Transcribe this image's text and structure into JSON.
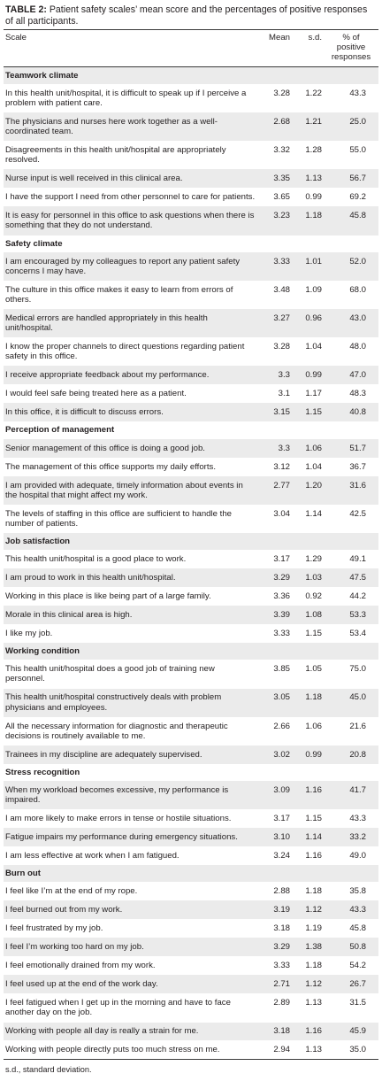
{
  "caption": {
    "label": "TABLE 2:",
    "text": " Patient safety scales’ mean score and the percentages of positive responses of all participants."
  },
  "columns": {
    "scale": "Scale",
    "mean": "Mean",
    "sd": "s.d.",
    "pct_line1": "% of",
    "pct_line2": "positive",
    "pct_line3": "responses"
  },
  "sections": [
    {
      "title": "Teamwork climate",
      "rows": [
        {
          "item": "In this health unit/hospital, it is difficult to speak up if I perceive a problem with patient care.",
          "mean": "3.28",
          "sd": "1.22",
          "pct": "43.3"
        },
        {
          "item": "The physicians and nurses here work together as a well-coordinated team.",
          "mean": "2.68",
          "sd": "1.21",
          "pct": "25.0"
        },
        {
          "item": "Disagreements in this health unit/hospital are appropriately resolved.",
          "mean": "3.32",
          "sd": "1.28",
          "pct": "55.0"
        },
        {
          "item": "Nurse input is well received in this clinical area.",
          "mean": "3.35",
          "sd": "1.13",
          "pct": "56.7"
        },
        {
          "item": "I have the support I need from other personnel to care for patients.",
          "mean": "3.65",
          "sd": "0.99",
          "pct": "69.2"
        },
        {
          "item": "It is easy for personnel in this office to ask questions when there is something that they do not understand.",
          "mean": "3.23",
          "sd": "1.18",
          "pct": "45.8"
        }
      ]
    },
    {
      "title": "Safety climate",
      "rows": [
        {
          "item": "I am encouraged by my colleagues to report any patient safety concerns I may have.",
          "mean": "3.33",
          "sd": "1.01",
          "pct": "52.0"
        },
        {
          "item": "The culture in this office makes it easy to learn from errors of others.",
          "mean": "3.48",
          "sd": "1.09",
          "pct": "68.0"
        },
        {
          "item": "Medical errors are handled appropriately in this health unit/hospital.",
          "mean": "3.27",
          "sd": "0.96",
          "pct": "43.0"
        },
        {
          "item": "I know the proper channels to direct questions regarding patient safety in this office.",
          "mean": "3.28",
          "sd": "1.04",
          "pct": "48.0"
        },
        {
          "item": "I receive appropriate feedback about my performance.",
          "mean": "3.3",
          "sd": "0.99",
          "pct": "47.0"
        },
        {
          "item": "I would feel safe being treated here as a patient.",
          "mean": "3.1",
          "sd": "1.17",
          "pct": "48.3"
        },
        {
          "item": "In this office, it is difficult to discuss errors.",
          "mean": "3.15",
          "sd": "1.15",
          "pct": "40.8"
        }
      ]
    },
    {
      "title": "Perception of management",
      "rows": [
        {
          "item": "Senior management of this office is doing a good job.",
          "mean": "3.3",
          "sd": "1.06",
          "pct": "51.7"
        },
        {
          "item": "The management of this office supports my daily efforts.",
          "mean": "3.12",
          "sd": "1.04",
          "pct": "36.7"
        },
        {
          "item": "I am provided with adequate, timely information about events in the hospital that might affect my work.",
          "mean": "2.77",
          "sd": "1.20",
          "pct": "31.6"
        },
        {
          "item": "The levels of staffing in this office are sufficient to handle the number of patients.",
          "mean": "3.04",
          "sd": "1.14",
          "pct": "42.5"
        }
      ]
    },
    {
      "title": "Job satisfaction",
      "rows": [
        {
          "item": "This health unit/hospital is a good place to work.",
          "mean": "3.17",
          "sd": "1.29",
          "pct": "49.1"
        },
        {
          "item": "I am proud to work in this health unit/hospital.",
          "mean": "3.29",
          "sd": "1.03",
          "pct": "47.5"
        },
        {
          "item": "Working in this place is like being part of a large family.",
          "mean": "3.36",
          "sd": "0.92",
          "pct": "44.2"
        },
        {
          "item": "Morale in this clinical area is high.",
          "mean": "3.39",
          "sd": "1.08",
          "pct": "53.3"
        },
        {
          "item": "I like my job.",
          "mean": "3.33",
          "sd": "1.15",
          "pct": "53.4"
        }
      ]
    },
    {
      "title": "Working condition",
      "rows": [
        {
          "item": "This health unit/hospital does a good job of training new personnel.",
          "mean": "3.85",
          "sd": "1.05",
          "pct": "75.0"
        },
        {
          "item": "This health unit/hospital constructively deals with problem physicians and employees.",
          "mean": "3.05",
          "sd": "1.18",
          "pct": "45.0"
        },
        {
          "item": "All the necessary information for diagnostic and therapeutic decisions is routinely available to me.",
          "mean": "2.66",
          "sd": "1.06",
          "pct": "21.6"
        },
        {
          "item": "Trainees in my discipline are adequately supervised.",
          "mean": "3.02",
          "sd": "0.99",
          "pct": "20.8"
        }
      ]
    },
    {
      "title": "Stress recognition",
      "rows": [
        {
          "item": "When my workload becomes excessive, my performance is impaired.",
          "mean": "3.09",
          "sd": "1.16",
          "pct": "41.7"
        },
        {
          "item": "I am more likely to make errors in tense or hostile situations.",
          "mean": "3.17",
          "sd": "1.15",
          "pct": "43.3"
        },
        {
          "item": "Fatigue impairs my performance during emergency situations.",
          "mean": "3.10",
          "sd": "1.14",
          "pct": "33.2"
        },
        {
          "item": "I am less effective at work when I am fatigued.",
          "mean": "3.24",
          "sd": "1.16",
          "pct": "49.0"
        }
      ]
    },
    {
      "title": "Burn out",
      "rows": [
        {
          "item": "I feel like I’m at the end of my rope.",
          "mean": "2.88",
          "sd": "1.18",
          "pct": "35.8"
        },
        {
          "item": "I feel burned out from my work.",
          "mean": "3.19",
          "sd": "1.12",
          "pct": "43.3"
        },
        {
          "item": "I feel frustrated by my job.",
          "mean": "3.18",
          "sd": "1.19",
          "pct": "45.8"
        },
        {
          "item": "I feel I’m working too hard on my job.",
          "mean": "3.29",
          "sd": "1.38",
          "pct": "50.8"
        },
        {
          "item": "I feel emotionally drained from my work.",
          "mean": "3.33",
          "sd": "1.18",
          "pct": "54.2"
        },
        {
          "item": "I feel used up at the end of the work day.",
          "mean": "2.71",
          "sd": "1.12",
          "pct": "26.7"
        },
        {
          "item": "I feel fatigued when I get up in the morning and have to face another day on the job.",
          "mean": "2.89",
          "sd": "1.13",
          "pct": "31.5"
        },
        {
          "item": "Working with people all day is really a strain for me.",
          "mean": "3.18",
          "sd": "1.16",
          "pct": "45.9"
        },
        {
          "item": "Working with people directly puts too much stress on me.",
          "mean": "2.94",
          "sd": "1.13",
          "pct": "35.0"
        }
      ]
    }
  ],
  "footnote": "s.d., standard deviation."
}
